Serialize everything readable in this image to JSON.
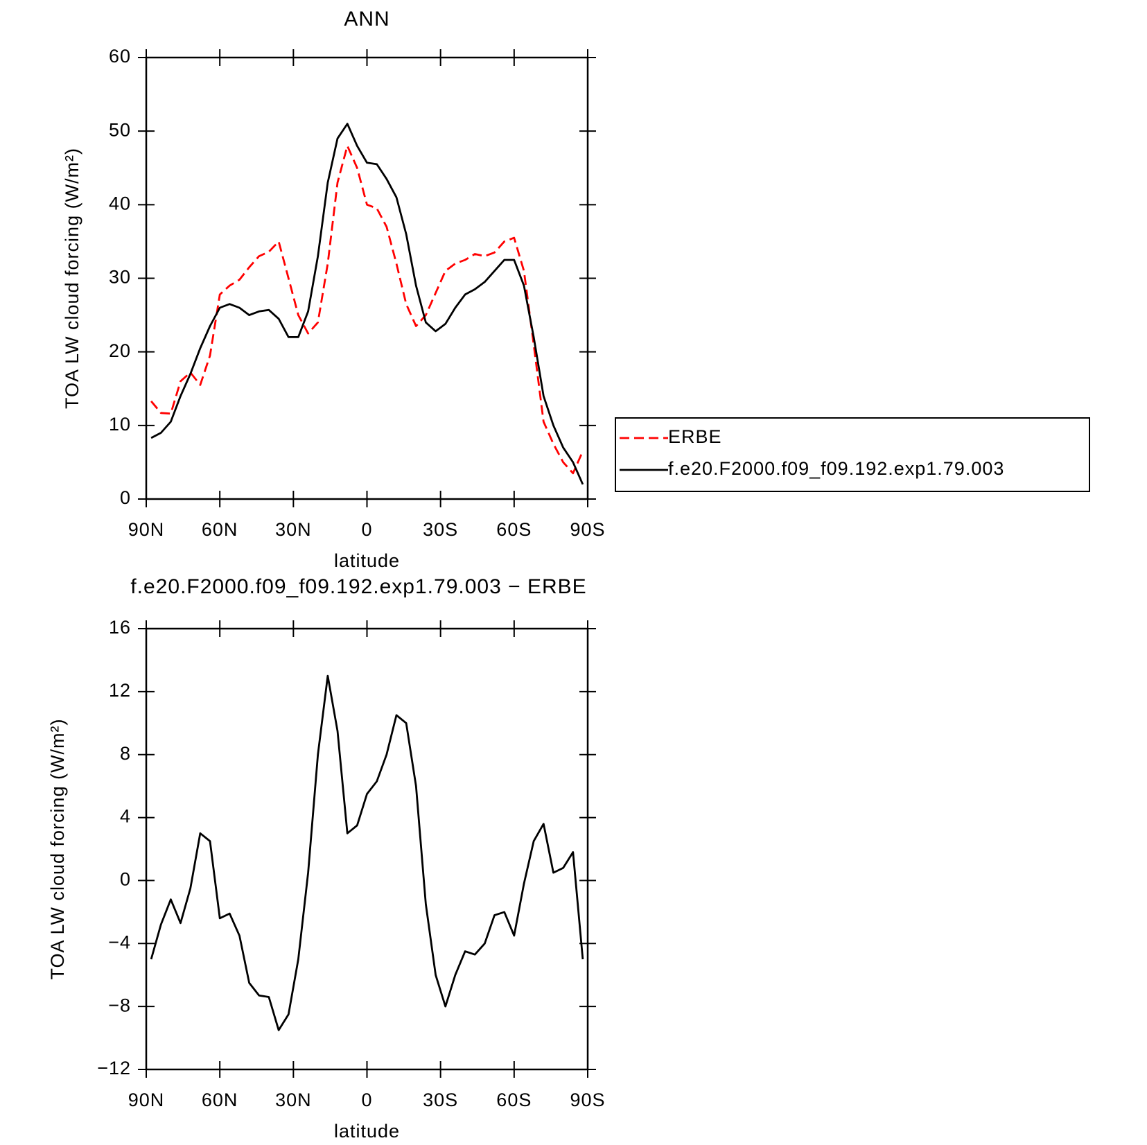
{
  "chart_data": [
    {
      "type": "line",
      "title": "ANN",
      "xlabel": "latitude",
      "ylabel": "TOA LW cloud forcing (W/m²)",
      "x": [
        88,
        84,
        80,
        76,
        72,
        68,
        64,
        60,
        56,
        52,
        48,
        44,
        40,
        36,
        32,
        28,
        24,
        20,
        16,
        12,
        8,
        4,
        0,
        -4,
        -8,
        -12,
        -16,
        -20,
        -24,
        -28,
        -32,
        -36,
        -40,
        -44,
        -48,
        -52,
        -56,
        -60,
        -64,
        -68,
        -72,
        -76,
        -80,
        -84,
        -88
      ],
      "series": [
        {
          "name": "ERBE",
          "color": "#ff0000",
          "style": "dashed",
          "values": [
            13.3,
            11.7,
            11.6,
            16,
            17.2,
            15.5,
            19.5,
            27.8,
            29,
            29.8,
            31.5,
            33,
            33.6,
            35,
            30,
            25,
            22.5,
            24,
            32,
            43,
            48,
            45,
            40,
            39.5,
            37,
            32,
            26.5,
            23.5,
            25,
            28,
            31,
            32,
            32.5,
            33.3,
            33,
            33.5,
            35,
            35.5,
            31,
            21,
            10.5,
            7.5,
            5,
            3.5,
            6.5
          ]
        },
        {
          "name": "f.e20.F2000.f09_f09.192.exp1.79.003",
          "color": "#000000",
          "style": "solid",
          "values": [
            8.3,
            9,
            10.5,
            14,
            17,
            20.5,
            23.5,
            26,
            26.5,
            26,
            25,
            25.5,
            25.7,
            24.5,
            22,
            22,
            25.5,
            33,
            43,
            49,
            51,
            48,
            45.7,
            45.5,
            43.5,
            41,
            36,
            29,
            24,
            22.8,
            23.8,
            26,
            27.8,
            28.5,
            29.5,
            31,
            32.5,
            32.5,
            29,
            22,
            14,
            10,
            7,
            5,
            2
          ]
        }
      ],
      "xlim": [
        90,
        -90
      ],
      "xticks": [
        {
          "value": 90,
          "label": "90N"
        },
        {
          "value": 60,
          "label": "60N"
        },
        {
          "value": 30,
          "label": "30N"
        },
        0,
        {
          "value": -30,
          "label": "30S"
        },
        {
          "value": -60,
          "label": "60S"
        },
        {
          "value": -90,
          "label": "90S"
        }
      ],
      "ylim": [
        0,
        60
      ],
      "yticks": [
        0,
        10,
        20,
        30,
        40,
        50,
        60
      ],
      "legend": "right"
    },
    {
      "type": "line",
      "title": "f.e20.F2000.f09_f09.192.exp1.79.003 − ERBE",
      "xlabel": "latitude",
      "ylabel": "TOA LW cloud forcing (W/m²)",
      "x": [
        88,
        84,
        80,
        76,
        72,
        68,
        64,
        60,
        56,
        52,
        48,
        44,
        40,
        36,
        32,
        28,
        24,
        20,
        16,
        12,
        8,
        4,
        0,
        -4,
        -8,
        -12,
        -16,
        -20,
        -24,
        -28,
        -32,
        -36,
        -40,
        -44,
        -48,
        -52,
        -56,
        -60,
        -64,
        -68,
        -72,
        -76,
        -80,
        -84,
        -88
      ],
      "series": [
        {
          "color": "#000000",
          "style": "solid",
          "values": [
            -5,
            -2.8,
            -1.2,
            -2.7,
            -0.5,
            3,
            2.5,
            -2.4,
            -2.1,
            -3.5,
            -6.5,
            -7.3,
            -7.4,
            -9.5,
            -8.5,
            -5,
            0.5,
            8,
            13,
            9.5,
            3,
            3.5,
            5.5,
            6.3,
            8,
            10.5,
            10,
            6,
            -1.5,
            -6,
            -8,
            -6,
            -4.5,
            -4.7,
            -4,
            -2.2,
            -2,
            -3.5,
            -0.2,
            2.5,
            3.6,
            0.5,
            0.8,
            1.8,
            -5
          ]
        }
      ],
      "xlim": [
        90,
        -90
      ],
      "xticks": [
        {
          "value": 90,
          "label": "90N"
        },
        {
          "value": 60,
          "label": "60N"
        },
        {
          "value": 30,
          "label": "30N"
        },
        0,
        {
          "value": -30,
          "label": "30S"
        },
        {
          "value": -60,
          "label": "60S"
        },
        {
          "value": -90,
          "label": "90S"
        }
      ],
      "ylim": [
        -12,
        16
      ],
      "yticks": [
        {
          "value": -12,
          "label": "−12"
        },
        {
          "value": -8,
          "label": "−8"
        },
        {
          "value": -4,
          "label": "−4"
        },
        0,
        4,
        8,
        12,
        16
      ]
    }
  ]
}
